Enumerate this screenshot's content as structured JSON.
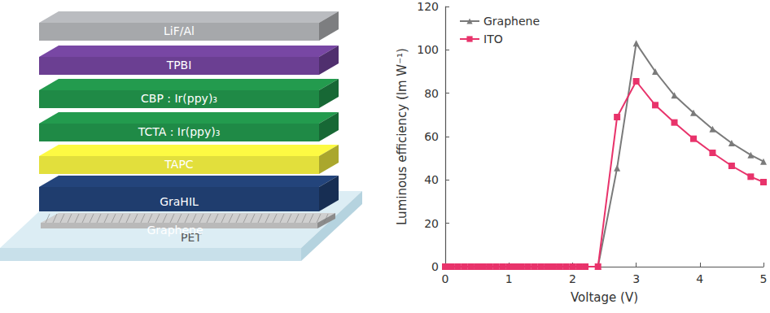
{
  "diagram": {
    "layers": [
      "LiF/Al",
      "TPBI",
      "CBP : Ir(ppy)₃",
      "TCTA : Ir(ppy)₃",
      "TAPC",
      "GraHIL",
      "Graphene",
      "PET"
    ]
  },
  "chart_data": {
    "type": "line",
    "x_label": "Voltage (V)",
    "y_label": "Luminous efficiency (lm W⁻¹)",
    "x": [
      0,
      0.1,
      0.2,
      0.3,
      0.4,
      0.5,
      0.6,
      0.7,
      0.8,
      0.9,
      1.0,
      1.1,
      1.2,
      1.3,
      1.4,
      1.5,
      1.6,
      1.7,
      1.8,
      1.9,
      2.0,
      2.1,
      2.2,
      2.4,
      2.7,
      3.0,
      3.3,
      3.6,
      3.9,
      4.2,
      4.5,
      4.8,
      5.0
    ],
    "series": [
      {
        "name": "Graphene",
        "color": "#7a7a7a",
        "marker": "triangle",
        "values": [
          0,
          0,
          0,
          0,
          0,
          0,
          0,
          0,
          0,
          0,
          0,
          0,
          0,
          0,
          0,
          0,
          0,
          0,
          0,
          0,
          0,
          0,
          0,
          0,
          45.5,
          103,
          90,
          79,
          71,
          63.5,
          57,
          51.5,
          48.5
        ]
      },
      {
        "name": "ITO",
        "color": "#e8336b",
        "marker": "square",
        "values": [
          0,
          0,
          0,
          0,
          0,
          0,
          0,
          0,
          0,
          0,
          0,
          0,
          0,
          0,
          0,
          0,
          0,
          0,
          0,
          0,
          0,
          0,
          0,
          0,
          69,
          85.5,
          74.5,
          66.5,
          59,
          52.5,
          46.5,
          41.5,
          39
        ]
      }
    ],
    "xlim": [
      0,
      5
    ],
    "xticks": [
      0,
      1,
      2,
      3,
      4,
      5
    ],
    "ylim": [
      0,
      120
    ],
    "yticks": [
      0,
      20,
      40,
      60,
      80,
      100,
      120
    ],
    "legend": "upper left",
    "grid": false
  }
}
